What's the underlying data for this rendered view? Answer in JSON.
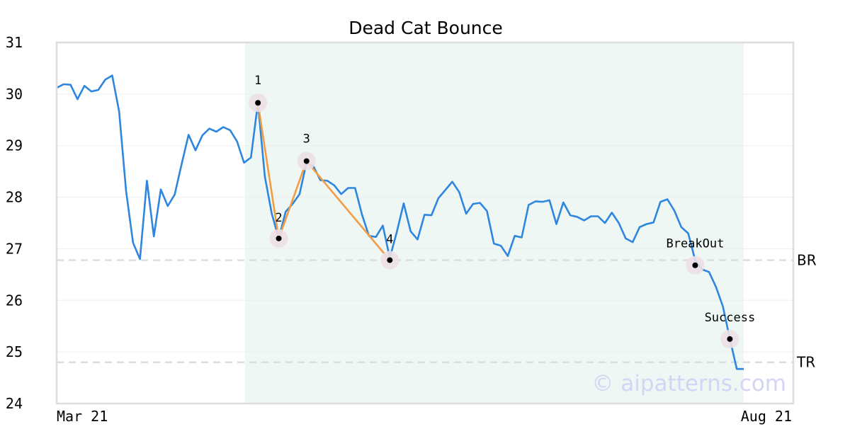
{
  "chart_data": {
    "type": "line",
    "title": "Dead Cat Bounce",
    "xlabel": "",
    "ylabel": "",
    "x_tick_labels": [
      "Mar 21",
      "Aug 21"
    ],
    "ylim": [
      24,
      31
    ],
    "y_ticks": [
      24,
      25,
      26,
      27,
      28,
      29,
      30,
      31
    ],
    "grid": "horizontal",
    "colors": {
      "price": "#2e86de",
      "pattern": "#f39c44",
      "highlight": "#eef7f3",
      "levels": "#dddddd",
      "marker_halo": "#ecdfe5",
      "axes": "#dddddd",
      "grid": "#eeeeee"
    },
    "series": [
      {
        "values": [
          30.12,
          30.19,
          30.18,
          29.9,
          30.16,
          30.05,
          30.08,
          30.28,
          30.36,
          29.66,
          28.12,
          27.12,
          26.8,
          28.32,
          27.24,
          28.15,
          27.83,
          28.05,
          28.64,
          29.21,
          28.91,
          29.2,
          29.33,
          29.27,
          29.36,
          29.3,
          29.08,
          28.67,
          28.77,
          29.83,
          28.4,
          27.68,
          27.2,
          27.72,
          27.87,
          28.06,
          28.67,
          28.6,
          28.33,
          28.32,
          28.23,
          28.06,
          28.18,
          28.18,
          27.66,
          27.25,
          27.23,
          27.45,
          26.82,
          27.32,
          27.88,
          27.34,
          27.18,
          27.66,
          27.65,
          27.98,
          28.14,
          28.3,
          28.1,
          27.68,
          27.87,
          27.89,
          27.73,
          27.1,
          27.06,
          26.86,
          27.25,
          27.22,
          27.85,
          27.92,
          27.91,
          27.94,
          27.48,
          27.9,
          27.65,
          27.62,
          27.55,
          27.63,
          27.63,
          27.5,
          27.7,
          27.5,
          27.2,
          27.13,
          27.42,
          27.48,
          27.51,
          27.91,
          27.96,
          27.74,
          27.42,
          27.3,
          26.78,
          26.6,
          26.55,
          26.26,
          25.88,
          25.25,
          24.67,
          24.67
        ]
      }
    ],
    "highlight_range": [
      27,
      99
    ],
    "pattern_points": [
      {
        "label": "1",
        "index": 29,
        "value": 29.83
      },
      {
        "label": "2",
        "index": 32,
        "value": 27.2
      },
      {
        "label": "3",
        "index": 36,
        "value": 28.7
      },
      {
        "label": "4",
        "index": 48,
        "value": 26.78
      }
    ],
    "markers": [
      {
        "label": "BreakOut",
        "index": 92,
        "value": 26.68
      },
      {
        "label": "Success",
        "index": 97,
        "value": 25.25
      }
    ],
    "levels": [
      {
        "label": "BR",
        "value": 26.78
      },
      {
        "label": "TR",
        "value": 24.8
      }
    ],
    "watermark": "© aipatterns.com"
  }
}
